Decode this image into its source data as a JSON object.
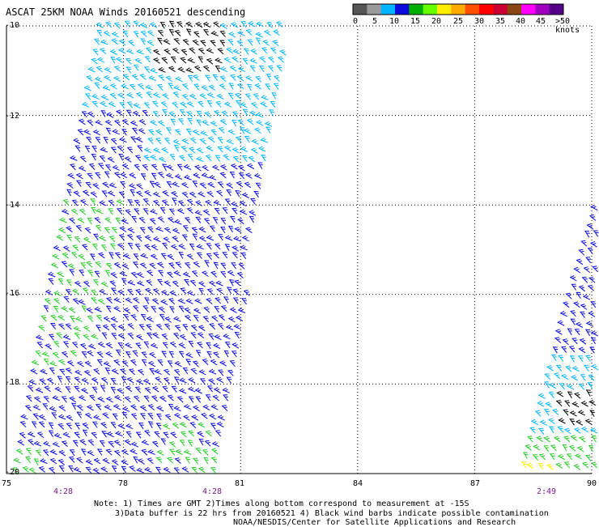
{
  "title": "ASCAT 25KM NOAA Winds 20160521 descending",
  "legend": {
    "labels": [
      "0",
      "5",
      "10",
      "15",
      "20",
      "25",
      "30",
      "35",
      "40",
      "45",
      ">50 knots"
    ],
    "colors": [
      "#555555",
      "#9a9a9a",
      "#00b4ff",
      "#0a0adc",
      "#00b000",
      "#66ff00",
      "#ffee00",
      "#ffaa00",
      "#ff5000",
      "#ff0000",
      "#cc0030",
      "#8b4513",
      "#ff00ff",
      "#a000c0",
      "#550088"
    ]
  },
  "axes": {
    "y_labels": [
      "-10",
      "-12",
      "-14",
      "-16",
      "-18",
      "-20"
    ],
    "x_labels": [
      "75",
      "78",
      "81",
      "84",
      "87",
      "90"
    ]
  },
  "time_labels": [
    "4:28",
    "4:28",
    "2:49"
  ],
  "notes": [
    "Note: 1) Times are GMT 2)Times along bottom correspond to measurement at -15S",
    "3)Data buffer is 22 hrs from 20160521 4) Black wind barbs indicate possible contamination",
    "NOAA/NESDIS/Center for Satellite Applications and Research"
  ],
  "map": {
    "lat_range": [
      -20,
      -10
    ],
    "lon_range": [
      75,
      90
    ],
    "grid": true
  }
}
